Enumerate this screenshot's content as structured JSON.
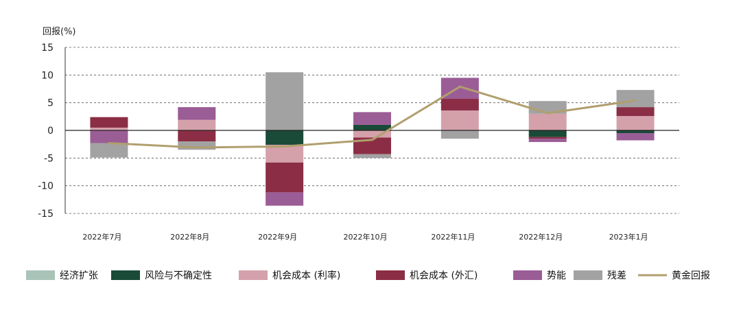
{
  "chart_data": {
    "type": "bar",
    "ylabel": "回报(%)",
    "ylim": [
      -15,
      15
    ],
    "yticks": [
      15,
      10,
      5,
      0,
      -5,
      -10,
      -15
    ],
    "categories": [
      "2022年7月",
      "2022年8月",
      "2022年9月",
      "2022年10月",
      "2022年11月",
      "2022年12月",
      "2023年1月"
    ],
    "series": [
      {
        "name": "经济扩张",
        "kind": "bar",
        "color": "#a9c3b8",
        "values": [
          0,
          0,
          0,
          0,
          0,
          0,
          0
        ]
      },
      {
        "name": "风险与不确定性",
        "kind": "bar",
        "color": "#1a4a38",
        "values": [
          0,
          0,
          -2.6,
          1.0,
          0,
          -1.2,
          -0.5
        ]
      },
      {
        "name": "机会成本 (利率)",
        "kind": "bar",
        "color": "#d4a1ab",
        "values": [
          0.5,
          1.9,
          -3.2,
          -1.3,
          3.6,
          3.0,
          2.6
        ]
      },
      {
        "name": "机会成本 (外汇)",
        "kind": "bar",
        "color": "#8b2e45",
        "values": [
          1.9,
          -2.0,
          -5.4,
          -3.0,
          2.1,
          -0.3,
          1.6
        ]
      },
      {
        "name": "势能",
        "kind": "bar",
        "color": "#9b5d96",
        "values": [
          -2.3,
          2.3,
          -2.4,
          2.3,
          3.8,
          -0.6,
          -1.3
        ]
      },
      {
        "name": "残差",
        "kind": "bar",
        "color": "#a2a2a2",
        "values": [
          -2.6,
          -1.5,
          10.5,
          -0.7,
          -1.5,
          2.3,
          3.1
        ]
      },
      {
        "name": "黄金回报",
        "kind": "line",
        "color": "#b09f6e",
        "values": [
          -2.3,
          -3.1,
          -2.9,
          -1.7,
          7.9,
          3.1,
          5.4
        ]
      }
    ],
    "grid": "dashed-horizontal",
    "legend_placement": "bottom"
  }
}
